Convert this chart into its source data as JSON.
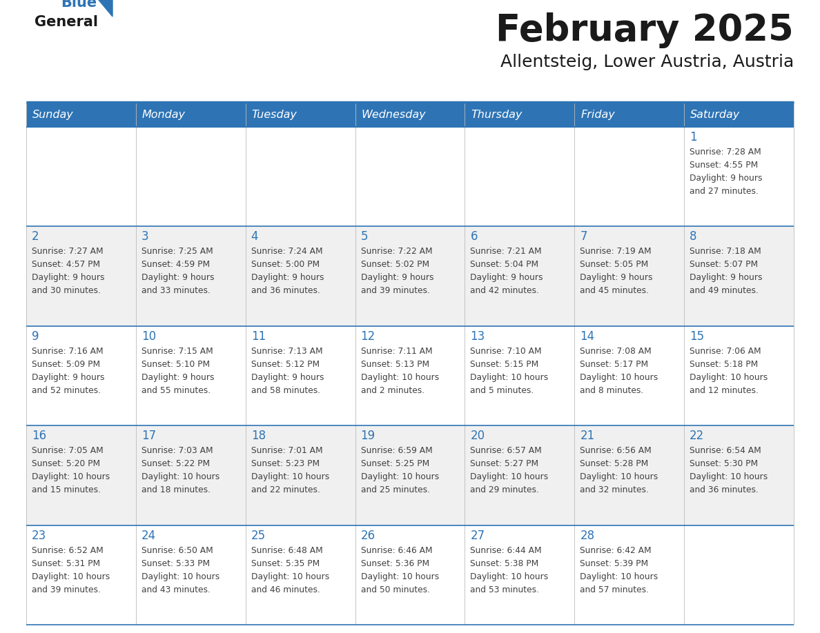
{
  "title": "February 2025",
  "subtitle": "Allentsteig, Lower Austria, Austria",
  "header_bg_color": "#2E74B5",
  "header_text_color": "#FFFFFF",
  "weekdays": [
    "Sunday",
    "Monday",
    "Tuesday",
    "Wednesday",
    "Thursday",
    "Friday",
    "Saturday"
  ],
  "cell_bg_even": "#FFFFFF",
  "cell_bg_odd": "#F0F0F0",
  "border_color": "#2E74B5",
  "day_text_color": "#2E74B5",
  "info_text_color": "#404040",
  "title_color": "#1A1A1A",
  "subtitle_color": "#1A1A1A",
  "days": [
    {
      "day": 1,
      "row": 0,
      "col": 6,
      "sunrise": "7:28 AM",
      "sunset": "4:55 PM",
      "daylight": "9 hours and 27 minutes."
    },
    {
      "day": 2,
      "row": 1,
      "col": 0,
      "sunrise": "7:27 AM",
      "sunset": "4:57 PM",
      "daylight": "9 hours and 30 minutes."
    },
    {
      "day": 3,
      "row": 1,
      "col": 1,
      "sunrise": "7:25 AM",
      "sunset": "4:59 PM",
      "daylight": "9 hours and 33 minutes."
    },
    {
      "day": 4,
      "row": 1,
      "col": 2,
      "sunrise": "7:24 AM",
      "sunset": "5:00 PM",
      "daylight": "9 hours and 36 minutes."
    },
    {
      "day": 5,
      "row": 1,
      "col": 3,
      "sunrise": "7:22 AM",
      "sunset": "5:02 PM",
      "daylight": "9 hours and 39 minutes."
    },
    {
      "day": 6,
      "row": 1,
      "col": 4,
      "sunrise": "7:21 AM",
      "sunset": "5:04 PM",
      "daylight": "9 hours and 42 minutes."
    },
    {
      "day": 7,
      "row": 1,
      "col": 5,
      "sunrise": "7:19 AM",
      "sunset": "5:05 PM",
      "daylight": "9 hours and 45 minutes."
    },
    {
      "day": 8,
      "row": 1,
      "col": 6,
      "sunrise": "7:18 AM",
      "sunset": "5:07 PM",
      "daylight": "9 hours and 49 minutes."
    },
    {
      "day": 9,
      "row": 2,
      "col": 0,
      "sunrise": "7:16 AM",
      "sunset": "5:09 PM",
      "daylight": "9 hours and 52 minutes."
    },
    {
      "day": 10,
      "row": 2,
      "col": 1,
      "sunrise": "7:15 AM",
      "sunset": "5:10 PM",
      "daylight": "9 hours and 55 minutes."
    },
    {
      "day": 11,
      "row": 2,
      "col": 2,
      "sunrise": "7:13 AM",
      "sunset": "5:12 PM",
      "daylight": "9 hours and 58 minutes."
    },
    {
      "day": 12,
      "row": 2,
      "col": 3,
      "sunrise": "7:11 AM",
      "sunset": "5:13 PM",
      "daylight": "10 hours and 2 minutes."
    },
    {
      "day": 13,
      "row": 2,
      "col": 4,
      "sunrise": "7:10 AM",
      "sunset": "5:15 PM",
      "daylight": "10 hours and 5 minutes."
    },
    {
      "day": 14,
      "row": 2,
      "col": 5,
      "sunrise": "7:08 AM",
      "sunset": "5:17 PM",
      "daylight": "10 hours and 8 minutes."
    },
    {
      "day": 15,
      "row": 2,
      "col": 6,
      "sunrise": "7:06 AM",
      "sunset": "5:18 PM",
      "daylight": "10 hours and 12 minutes."
    },
    {
      "day": 16,
      "row": 3,
      "col": 0,
      "sunrise": "7:05 AM",
      "sunset": "5:20 PM",
      "daylight": "10 hours and 15 minutes."
    },
    {
      "day": 17,
      "row": 3,
      "col": 1,
      "sunrise": "7:03 AM",
      "sunset": "5:22 PM",
      "daylight": "10 hours and 18 minutes."
    },
    {
      "day": 18,
      "row": 3,
      "col": 2,
      "sunrise": "7:01 AM",
      "sunset": "5:23 PM",
      "daylight": "10 hours and 22 minutes."
    },
    {
      "day": 19,
      "row": 3,
      "col": 3,
      "sunrise": "6:59 AM",
      "sunset": "5:25 PM",
      "daylight": "10 hours and 25 minutes."
    },
    {
      "day": 20,
      "row": 3,
      "col": 4,
      "sunrise": "6:57 AM",
      "sunset": "5:27 PM",
      "daylight": "10 hours and 29 minutes."
    },
    {
      "day": 21,
      "row": 3,
      "col": 5,
      "sunrise": "6:56 AM",
      "sunset": "5:28 PM",
      "daylight": "10 hours and 32 minutes."
    },
    {
      "day": 22,
      "row": 3,
      "col": 6,
      "sunrise": "6:54 AM",
      "sunset": "5:30 PM",
      "daylight": "10 hours and 36 minutes."
    },
    {
      "day": 23,
      "row": 4,
      "col": 0,
      "sunrise": "6:52 AM",
      "sunset": "5:31 PM",
      "daylight": "10 hours and 39 minutes."
    },
    {
      "day": 24,
      "row": 4,
      "col": 1,
      "sunrise": "6:50 AM",
      "sunset": "5:33 PM",
      "daylight": "10 hours and 43 minutes."
    },
    {
      "day": 25,
      "row": 4,
      "col": 2,
      "sunrise": "6:48 AM",
      "sunset": "5:35 PM",
      "daylight": "10 hours and 46 minutes."
    },
    {
      "day": 26,
      "row": 4,
      "col": 3,
      "sunrise": "6:46 AM",
      "sunset": "5:36 PM",
      "daylight": "10 hours and 50 minutes."
    },
    {
      "day": 27,
      "row": 4,
      "col": 4,
      "sunrise": "6:44 AM",
      "sunset": "5:38 PM",
      "daylight": "10 hours and 53 minutes."
    },
    {
      "day": 28,
      "row": 4,
      "col": 5,
      "sunrise": "6:42 AM",
      "sunset": "5:39 PM",
      "daylight": "10 hours and 57 minutes."
    }
  ]
}
